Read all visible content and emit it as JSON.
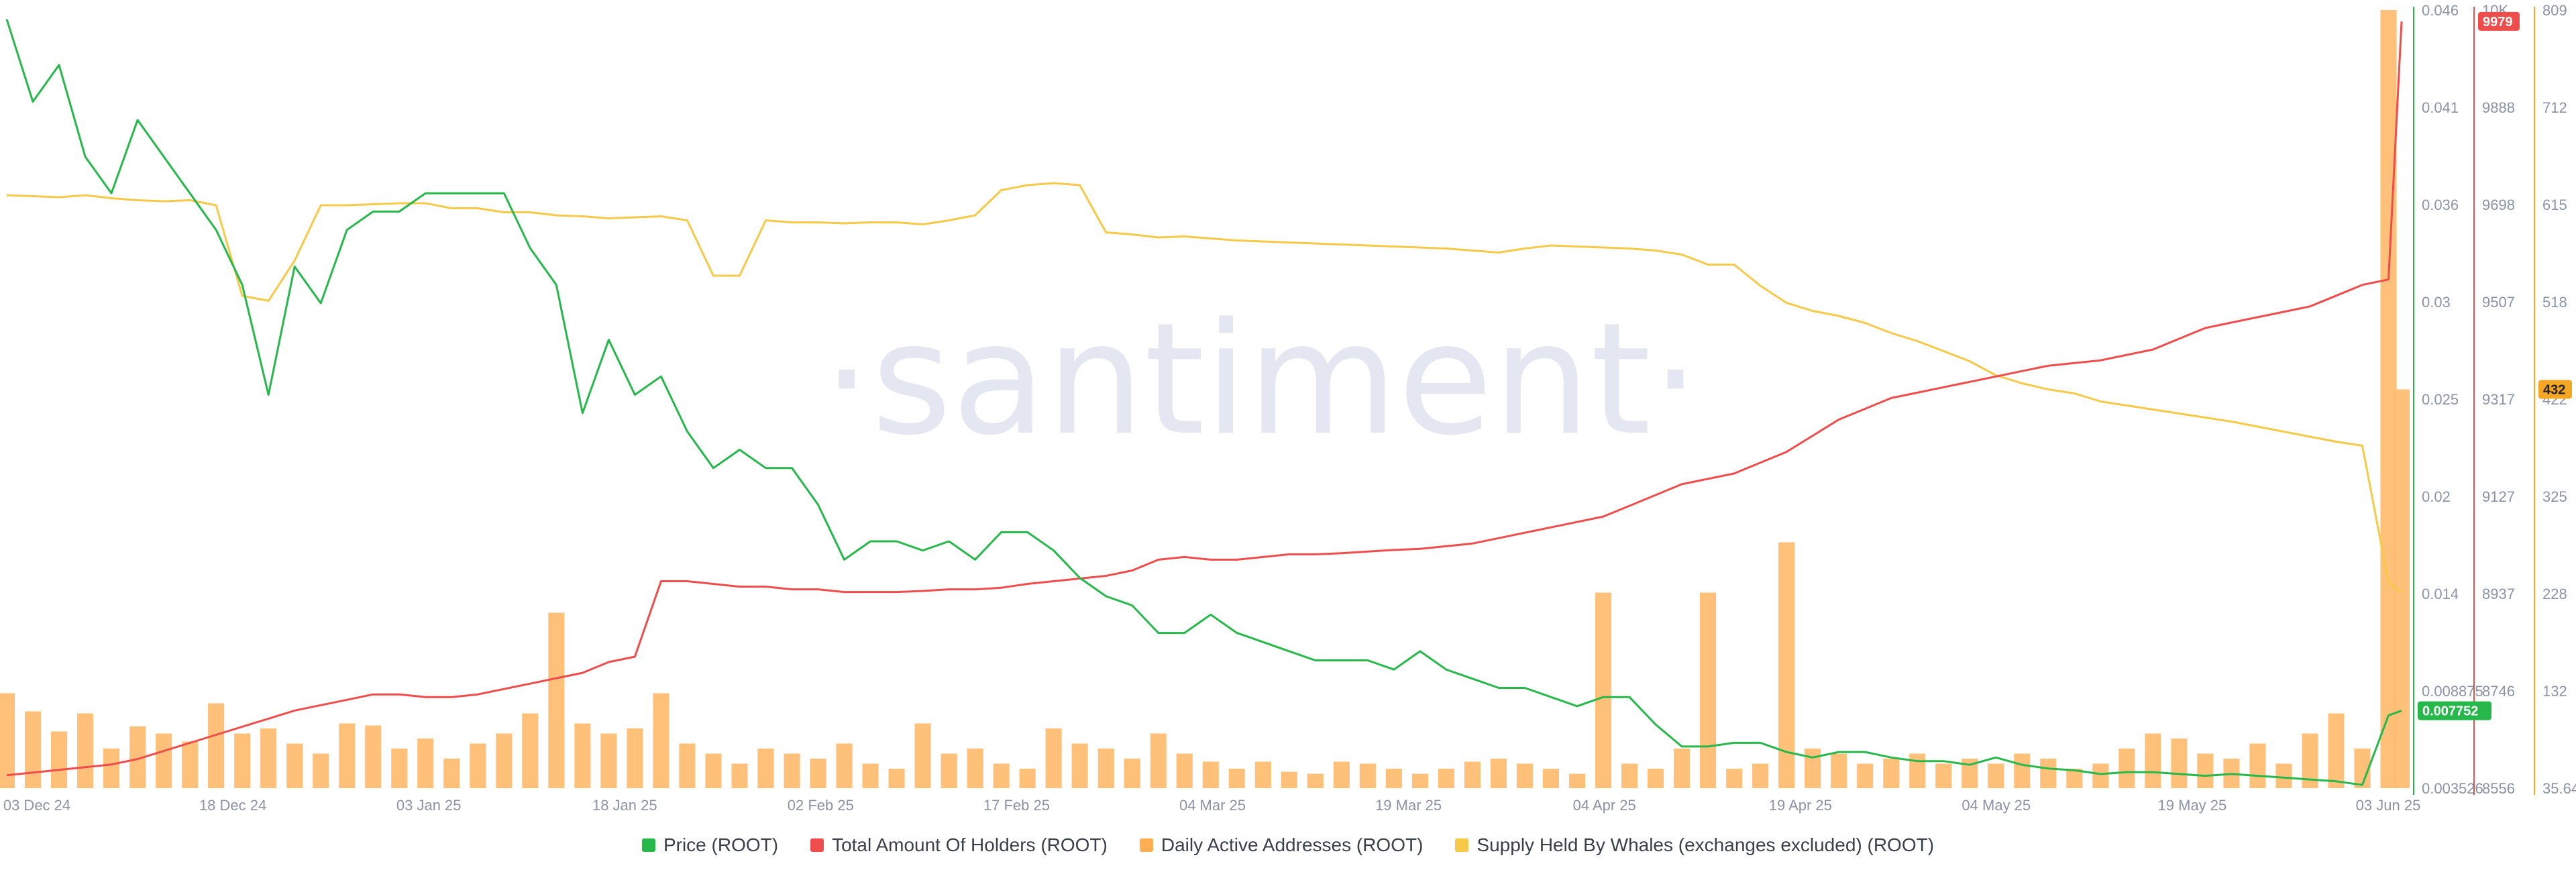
{
  "watermark": "·santiment·",
  "x_ticks": [
    "03 Dec 24",
    "18 Dec 24",
    "03 Jan 25",
    "18 Jan 25",
    "02 Feb 25",
    "17 Feb 25",
    "04 Mar 25",
    "19 Mar 25",
    "04 Apr 25",
    "19 Apr 25",
    "04 May 25",
    "19 May 25",
    "03 Jun 25"
  ],
  "axes": {
    "price": {
      "ticks": [
        "0.046",
        "0.041",
        "0.036",
        "0.03",
        "0.025",
        "0.02",
        "0.014",
        "0.008875",
        "0.003526"
      ],
      "color": "#26b84a",
      "badge": "0.007752"
    },
    "holders": {
      "ticks": [
        "10K",
        "9888",
        "9698",
        "9507",
        "9317",
        "9127",
        "8937",
        "8746",
        "8556"
      ],
      "color": "#ef4c4c",
      "badge": "9979"
    },
    "daa": {
      "ticks": [
        "809",
        "712",
        "615",
        "518",
        "422",
        "325",
        "228",
        "132",
        "35.64"
      ],
      "color": "#f5a623",
      "badge": "432"
    }
  },
  "legend": [
    {
      "label": "Price (ROOT)",
      "color": "#26b84a"
    },
    {
      "label": "Total Amount Of Holders (ROOT)",
      "color": "#ef4c4c"
    },
    {
      "label": "Daily Active Addresses (ROOT)",
      "color": "#ffae52"
    },
    {
      "label": "Supply Held By Whales (exchanges excluded) (ROOT)",
      "color": "#f7c948"
    }
  ],
  "chart_data": {
    "type": "line",
    "x": [
      "2024-12-01",
      "2024-12-03",
      "2024-12-05",
      "2024-12-07",
      "2024-12-09",
      "2024-12-11",
      "2024-12-13",
      "2024-12-15",
      "2024-12-17",
      "2024-12-19",
      "2024-12-21",
      "2024-12-23",
      "2024-12-25",
      "2024-12-27",
      "2024-12-29",
      "2024-12-31",
      "2025-01-02",
      "2025-01-04",
      "2025-01-06",
      "2025-01-08",
      "2025-01-10",
      "2025-01-12",
      "2025-01-14",
      "2025-01-16",
      "2025-01-18",
      "2025-01-20",
      "2025-01-22",
      "2025-01-24",
      "2025-01-26",
      "2025-01-28",
      "2025-01-30",
      "2025-02-01",
      "2025-02-03",
      "2025-02-05",
      "2025-02-07",
      "2025-02-09",
      "2025-02-11",
      "2025-02-13",
      "2025-02-15",
      "2025-02-17",
      "2025-02-19",
      "2025-02-21",
      "2025-02-23",
      "2025-02-25",
      "2025-02-27",
      "2025-03-01",
      "2025-03-03",
      "2025-03-05",
      "2025-03-07",
      "2025-03-09",
      "2025-03-11",
      "2025-03-13",
      "2025-03-15",
      "2025-03-17",
      "2025-03-19",
      "2025-03-21",
      "2025-03-23",
      "2025-03-25",
      "2025-03-27",
      "2025-03-29",
      "2025-03-31",
      "2025-04-02",
      "2025-04-04",
      "2025-04-06",
      "2025-04-08",
      "2025-04-10",
      "2025-04-12",
      "2025-04-14",
      "2025-04-16",
      "2025-04-18",
      "2025-04-20",
      "2025-04-22",
      "2025-04-24",
      "2025-04-26",
      "2025-04-28",
      "2025-04-30",
      "2025-05-02",
      "2025-05-04",
      "2025-05-06",
      "2025-05-08",
      "2025-05-10",
      "2025-05-12",
      "2025-05-14",
      "2025-05-16",
      "2025-05-18",
      "2025-05-20",
      "2025-05-22",
      "2025-05-24",
      "2025-05-26",
      "2025-05-28",
      "2025-05-30",
      "2025-06-01",
      "2025-06-02"
    ],
    "series": [
      {
        "name": "Price (ROOT)",
        "axis": "price",
        "values": [
          0.0455,
          0.041,
          0.043,
          0.038,
          0.036,
          0.04,
          0.038,
          0.036,
          0.034,
          0.031,
          0.025,
          0.032,
          0.03,
          0.034,
          0.035,
          0.035,
          0.036,
          0.036,
          0.036,
          0.036,
          0.033,
          0.031,
          0.024,
          0.028,
          0.025,
          0.026,
          0.023,
          0.021,
          0.022,
          0.021,
          0.021,
          0.019,
          0.016,
          0.017,
          0.017,
          0.0165,
          0.017,
          0.016,
          0.0175,
          0.0175,
          0.0165,
          0.015,
          0.014,
          0.0135,
          0.012,
          0.012,
          0.013,
          0.012,
          0.0115,
          0.011,
          0.0105,
          0.0105,
          0.0105,
          0.01,
          0.011,
          0.01,
          0.0095,
          0.009,
          0.009,
          0.0085,
          0.008,
          0.0085,
          0.0085,
          0.007,
          0.0058,
          0.0058,
          0.006,
          0.006,
          0.0055,
          0.0052,
          0.0055,
          0.0055,
          0.0052,
          0.005,
          0.005,
          0.0048,
          0.0052,
          0.0048,
          0.0046,
          0.0045,
          0.0043,
          0.0044,
          0.0044,
          0.0043,
          0.0042,
          0.0043,
          0.0042,
          0.0041,
          0.004,
          0.0039,
          0.0037,
          0.0075,
          0.00775
        ]
      },
      {
        "name": "Total Amount Of Holders (ROOT)",
        "axis": "holders",
        "values": [
          8580,
          8585,
          8590,
          8595,
          8600,
          8610,
          8625,
          8640,
          8655,
          8670,
          8685,
          8700,
          8710,
          8720,
          8730,
          8730,
          8725,
          8725,
          8730,
          8740,
          8750,
          8760,
          8770,
          8790,
          8800,
          8940,
          8940,
          8935,
          8930,
          8930,
          8925,
          8925,
          8920,
          8920,
          8920,
          8922,
          8925,
          8925,
          8928,
          8935,
          8940,
          8945,
          8950,
          8960,
          8980,
          8985,
          8980,
          8980,
          8985,
          8990,
          8990,
          8992,
          8995,
          8998,
          9000,
          9005,
          9010,
          9020,
          9030,
          9040,
          9050,
          9060,
          9080,
          9100,
          9120,
          9130,
          9140,
          9160,
          9180,
          9210,
          9240,
          9260,
          9280,
          9290,
          9300,
          9310,
          9320,
          9330,
          9340,
          9345,
          9350,
          9360,
          9370,
          9390,
          9410,
          9420,
          9430,
          9440,
          9450,
          9470,
          9490,
          9500,
          9979
        ]
      },
      {
        "name": "Daily Active Addresses (ROOT)",
        "axis": "daa",
        "type": "bar",
        "values": [
          130,
          112,
          92,
          110,
          75,
          97,
          90,
          82,
          120,
          90,
          95,
          80,
          70,
          100,
          98,
          75,
          85,
          65,
          80,
          90,
          110,
          210,
          100,
          90,
          95,
          130,
          80,
          70,
          60,
          75,
          70,
          65,
          80,
          60,
          55,
          100,
          70,
          75,
          60,
          55,
          95,
          80,
          75,
          65,
          90,
          70,
          62,
          55,
          62,
          52,
          50,
          62,
          60,
          55,
          50,
          55,
          62,
          65,
          60,
          55,
          50,
          230,
          60,
          55,
          75,
          230,
          55,
          60,
          280,
          75,
          70,
          60,
          65,
          70,
          60,
          65,
          60,
          70,
          65,
          55,
          60,
          75,
          90,
          85,
          70,
          65,
          80,
          60,
          90,
          110,
          75,
          809,
          432
        ]
      },
      {
        "name": "Supply Held By Whales (exchanges excluded) (ROOT)",
        "axis": "daa",
        "values": [
          625,
          624,
          623,
          625,
          622,
          620,
          619,
          620,
          615,
          525,
          520,
          560,
          615,
          615,
          616,
          617,
          617,
          612,
          612,
          608,
          608,
          605,
          604,
          602,
          603,
          604,
          600,
          545,
          545,
          600,
          598,
          598,
          597,
          598,
          598,
          596,
          600,
          605,
          630,
          635,
          637,
          635,
          588,
          586,
          583,
          584,
          582,
          580,
          579,
          578,
          577,
          576,
          575,
          574,
          573,
          572,
          570,
          568,
          572,
          575,
          574,
          573,
          572,
          570,
          566,
          556,
          556,
          535,
          518,
          510,
          505,
          498,
          488,
          480,
          470,
          460,
          446,
          438,
          432,
          428,
          420,
          416,
          412,
          408,
          404,
          400,
          395,
          390,
          385,
          380,
          376,
          240,
          230
        ]
      }
    ],
    "y_ranges": {
      "price": [
        0.003526,
        0.046
      ],
      "holders": [
        8556,
        10000
      ],
      "daa": [
        35.64,
        809
      ]
    },
    "xlabel": "",
    "ylabel": "",
    "grid": false,
    "legend_position": "bottom-center"
  }
}
